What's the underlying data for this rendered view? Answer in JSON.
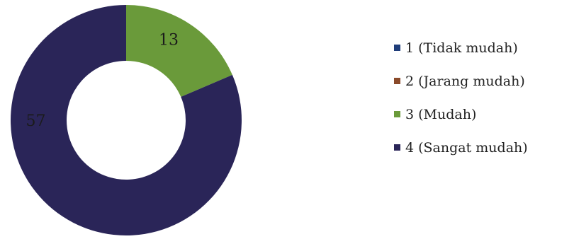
{
  "chart_data": {
    "type": "pie",
    "variant": "donut",
    "categories": [
      "1 (Tidak mudah)",
      "2 (Jarang mudah)",
      "3 (Mudah)",
      "4 (Sangat mudah)"
    ],
    "values": [
      0,
      0,
      13,
      57
    ],
    "data_labels": [
      "",
      "",
      "13",
      "57"
    ],
    "colors": [
      "#1f3d7a",
      "#8a4a2a",
      "#6a9a3a",
      "#2a2558"
    ],
    "legend_position": "right",
    "title": ""
  }
}
